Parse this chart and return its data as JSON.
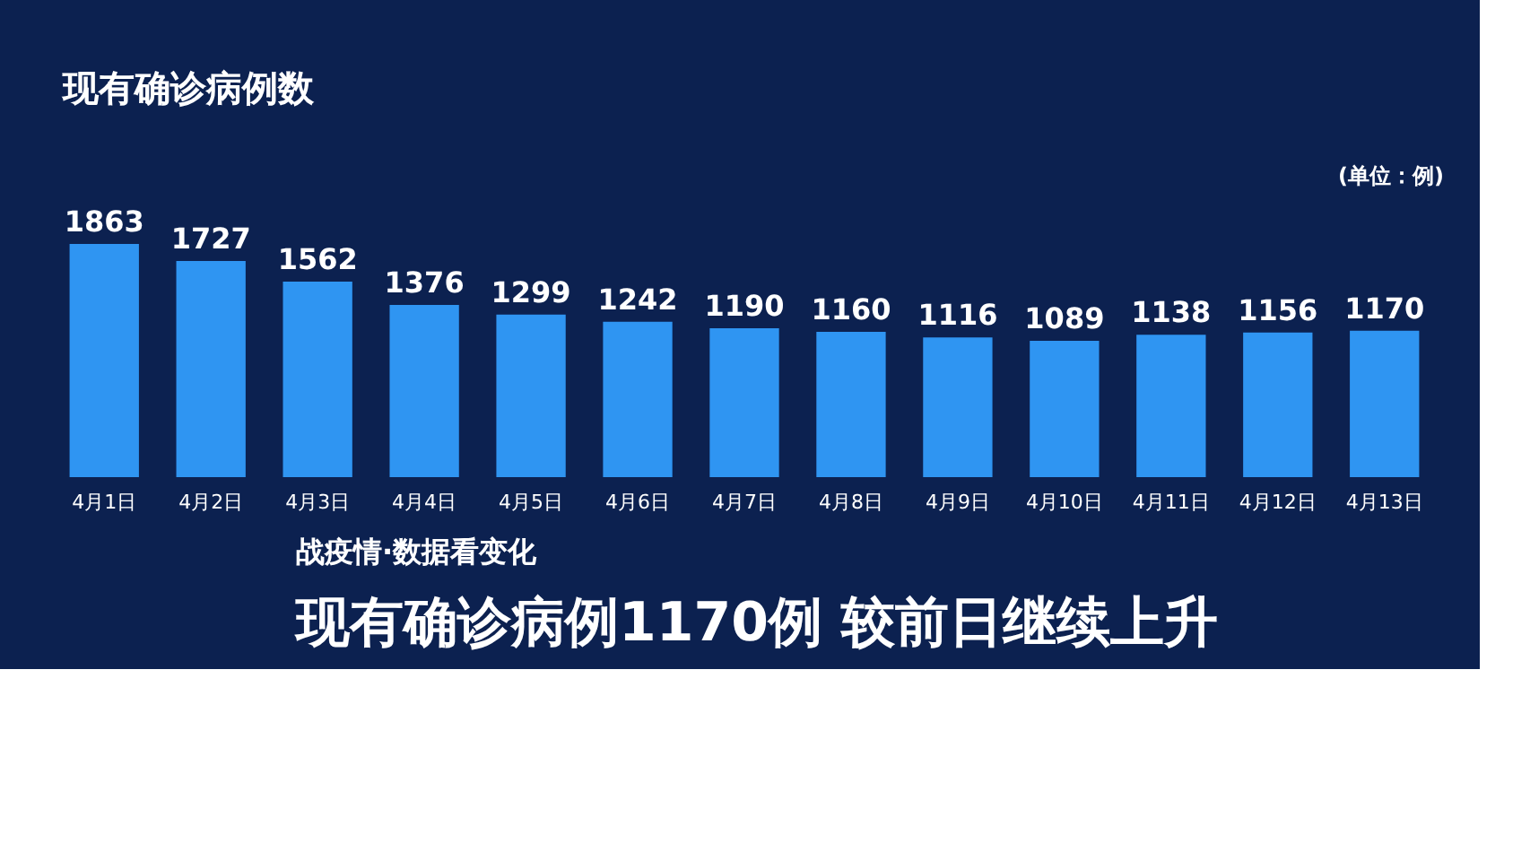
{
  "chart_data": {
    "type": "bar",
    "title": "现有确诊病例数",
    "subtitle": "(单位：例)",
    "categories": [
      "4月1日",
      "4月2日",
      "4月3日",
      "4月4日",
      "4月5日",
      "4月6日",
      "4月7日",
      "4月8日",
      "4月9日",
      "4月10日",
      "4月11日",
      "4月12日",
      "4月13日"
    ],
    "values": [
      1863,
      1727,
      1562,
      1376,
      1299,
      1242,
      1190,
      1160,
      1116,
      1089,
      1138,
      1156,
      1170
    ],
    "color": "#2f95f2",
    "data_labels": true,
    "grid": false,
    "annotations": [
      "战疫情·数据看变化",
      "现有确诊病例1170例 较前日继续上升"
    ]
  }
}
